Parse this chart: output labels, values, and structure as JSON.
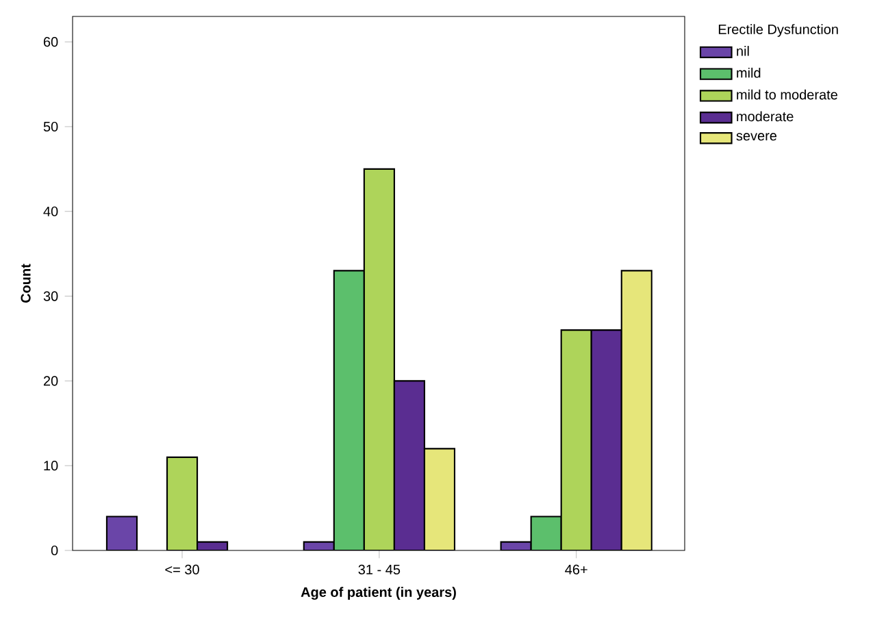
{
  "chart_data": {
    "type": "bar",
    "xlabel": "Age of patient (in years)",
    "ylabel": "Count",
    "legend_title": "Erectile Dysfunction",
    "legend": "top right",
    "categories": [
      "<= 30",
      "31 - 45",
      "46+"
    ],
    "series": [
      {
        "name": "nil",
        "color": "#6a45a8",
        "values": [
          4,
          1,
          1
        ]
      },
      {
        "name": "mild",
        "color": "#5cbf6c",
        "values": [
          null,
          33,
          4
        ]
      },
      {
        "name": "mild to moderate",
        "color": "#aed45a",
        "values": [
          11,
          45,
          26
        ]
      },
      {
        "name": "moderate",
        "color": "#5a2d91",
        "values": [
          1,
          20,
          26
        ]
      },
      {
        "name": "severe",
        "color": "#e6e67a",
        "values": [
          null,
          12,
          33
        ]
      }
    ],
    "ylim": [
      0,
      63
    ],
    "yticks": [
      0,
      10,
      20,
      30,
      40,
      50,
      60
    ],
    "grid": false
  }
}
